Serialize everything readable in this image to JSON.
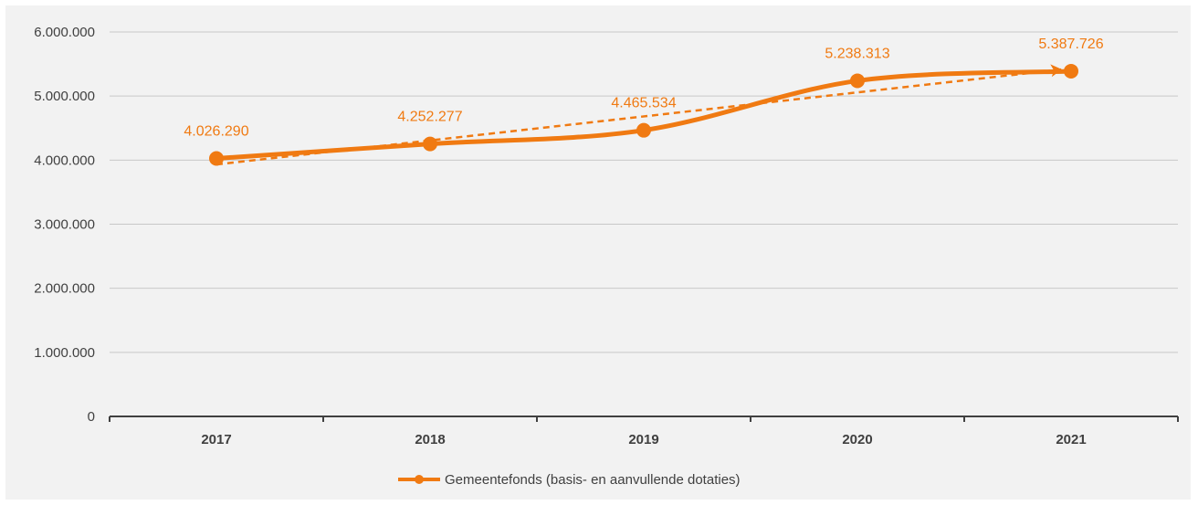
{
  "chart_data": {
    "type": "line",
    "categories": [
      "2017",
      "2018",
      "2019",
      "2020",
      "2021"
    ],
    "series": [
      {
        "name": "Gemeentefonds (basis- en aanvullende dotaties)",
        "values": [
          4026290,
          4252277,
          4465534,
          5238313,
          5387726
        ],
        "data_labels": [
          "4.026.290",
          "4.252.277",
          "4.465.534",
          "5.238.313",
          "5.387.726"
        ],
        "color": "#f07a12",
        "smooth": true,
        "markers": true
      }
    ],
    "trendline": {
      "type": "linear",
      "style": "dashed",
      "color": "#f07a12"
    },
    "y_ticks": [
      {
        "value": 0,
        "label": "0"
      },
      {
        "value": 1000000,
        "label": "1.000.000"
      },
      {
        "value": 2000000,
        "label": "2.000.000"
      },
      {
        "value": 3000000,
        "label": "3.000.000"
      },
      {
        "value": 4000000,
        "label": "4.000.000"
      },
      {
        "value": 5000000,
        "label": "5.000.000"
      },
      {
        "value": 6000000,
        "label": "6.000.000"
      }
    ],
    "ylim": [
      0,
      6000000
    ],
    "grid": true,
    "legend_position": "bottom-center",
    "title": "",
    "xlabel": "",
    "ylabel": ""
  }
}
